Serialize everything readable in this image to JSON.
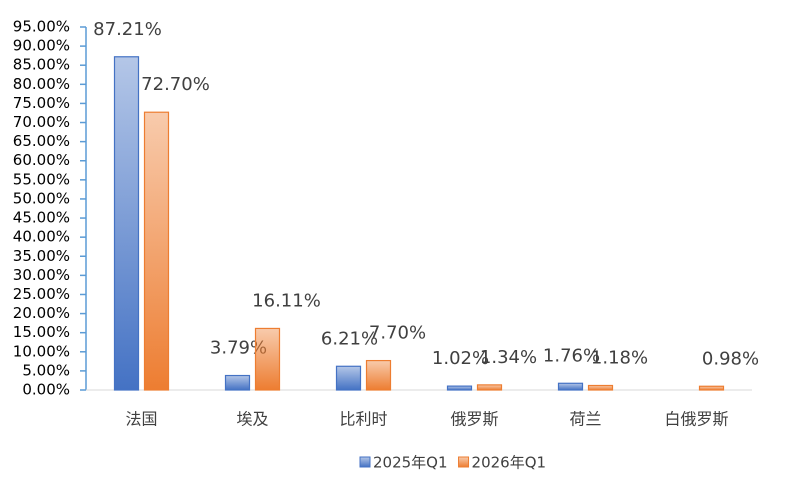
{
  "chart_data": {
    "type": "bar",
    "categories": [
      "法国",
      "埃及",
      "比利时",
      "俄罗斯",
      "荷兰",
      "白俄罗斯"
    ],
    "series": [
      {
        "name": "2025年Q1",
        "color": "#4472c4",
        "values": [
          87.21,
          3.79,
          6.21,
          1.02,
          1.76,
          null
        ],
        "value_labels": [
          "87.21%",
          "3.79%",
          "6.21%",
          "1.02%",
          "1.76%",
          null
        ]
      },
      {
        "name": "2026年Q1",
        "color": "#ed7d31",
        "values": [
          72.7,
          16.11,
          7.7,
          1.34,
          1.18,
          0.98
        ],
        "value_labels": [
          "72.70%",
          "16.11%",
          "7.70%",
          "1.34%",
          "1.18%",
          "0.98%"
        ]
      }
    ],
    "ylim": [
      0,
      95
    ],
    "yticks": [
      {
        "value": 0,
        "label": "0.00%"
      },
      {
        "value": 5,
        "label": "5.00%"
      },
      {
        "value": 10,
        "label": "10.00%"
      },
      {
        "value": 15,
        "label": "15.00%"
      },
      {
        "value": 20,
        "label": "20.00%"
      },
      {
        "value": 25,
        "label": "25.00%"
      },
      {
        "value": 30,
        "label": "30.00%"
      },
      {
        "value": 35,
        "label": "35.00%"
      },
      {
        "value": 40,
        "label": "40.00%"
      },
      {
        "value": 45,
        "label": "45.00%"
      },
      {
        "value": 50,
        "label": "50.00%"
      },
      {
        "value": 55,
        "label": "55.00%"
      },
      {
        "value": 60,
        "label": "60.00%"
      },
      {
        "value": 65,
        "label": "65.00%"
      },
      {
        "value": 70,
        "label": "70.00%"
      },
      {
        "value": 75,
        "label": "75.00%"
      },
      {
        "value": 80,
        "label": "80.00%"
      },
      {
        "value": 85,
        "label": "85.00%"
      },
      {
        "value": 90,
        "label": "90.00%"
      },
      {
        "value": 95,
        "label": "95.00%"
      }
    ],
    "legend": "bottom"
  }
}
